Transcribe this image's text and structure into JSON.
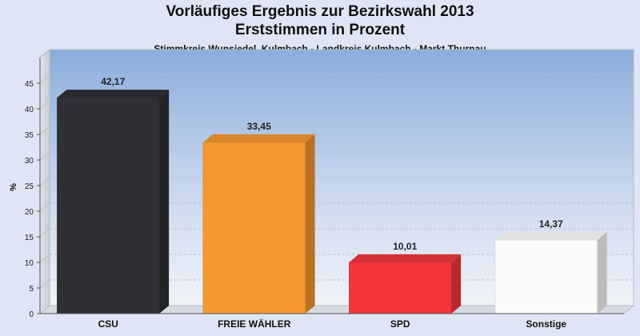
{
  "title_line1": "Vorläufiges Ergebnis zur Bezirkswahl 2013",
  "title_line2": "Erststimmen in Prozent",
  "subtitle": "Stimmkreis Wunsiedel, Kulmbach - Landkreis Kulmbach - Markt Thurnau",
  "chart_data": {
    "type": "bar",
    "title": "Vorläufiges Ergebnis zur Bezirkswahl 2013 Erststimmen in Prozent",
    "subtitle": "Stimmkreis Wunsiedel, Kulmbach - Landkreis Kulmbach - Markt Thurnau",
    "xlabel": "",
    "ylabel": "%",
    "ylim": [
      0,
      45
    ],
    "yticks": [
      0,
      5,
      10,
      15,
      20,
      25,
      30,
      35,
      40,
      45
    ],
    "grid": true,
    "legend": "none",
    "categories": [
      "CSU",
      "FREIE WÄHLER",
      "SPD",
      "Sonstige"
    ],
    "values": [
      42.17,
      33.45,
      10.01,
      14.37
    ],
    "value_labels": [
      "42,17",
      "33,45",
      "10,01",
      "14,37"
    ],
    "colors": [
      "#2f3034",
      "#f7972f",
      "#f2363c",
      "#fafafa"
    ]
  }
}
